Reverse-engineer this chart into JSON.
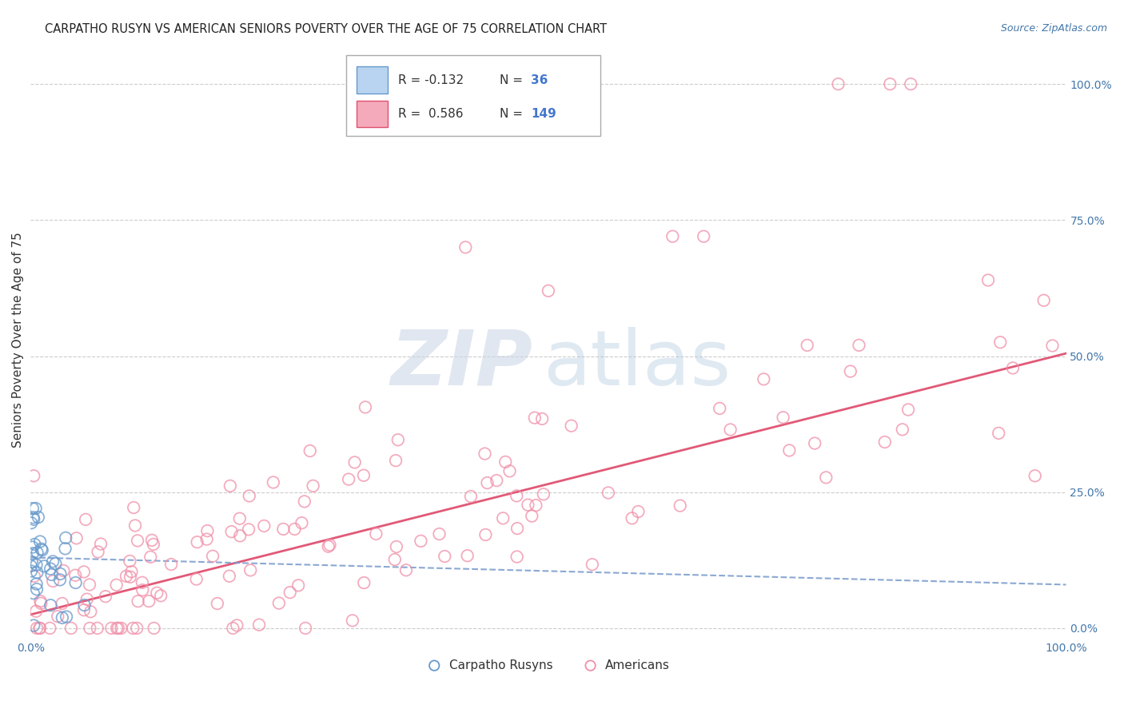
{
  "title": "CARPATHO RUSYN VS AMERICAN SENIORS POVERTY OVER THE AGE OF 75 CORRELATION CHART",
  "source": "Source: ZipAtlas.com",
  "ylabel": "Seniors Poverty Over the Age of 75",
  "xlim": [
    0.0,
    1.0
  ],
  "ylim": [
    -0.02,
    1.08
  ],
  "y_tick_positions": [
    0.0,
    0.25,
    0.5,
    0.75,
    1.0
  ],
  "y_tick_labels": [
    "0.0%",
    "25.0%",
    "50.0%",
    "75.0%",
    "100.0%"
  ],
  "x_tick_positions": [
    0.0,
    1.0
  ],
  "x_tick_labels": [
    "0.0%",
    "100.0%"
  ],
  "carpatho_color": "#6699cc",
  "american_color": "#f090a8",
  "american_line_color": "#e05070",
  "carpatho_line_color": "#7799cc",
  "background_color": "#ffffff",
  "grid_color": "#cccccc",
  "title_color": "#222222",
  "source_color": "#4477aa",
  "axis_label_color": "#333333",
  "tick_color": "#4477aa",
  "legend_blue_face": "#b8d4f0",
  "legend_pink_face": "#f4aabb",
  "carpatho_slope": -0.05,
  "carpatho_intercept": 0.13,
  "american_slope": 0.48,
  "american_intercept": 0.025,
  "watermark_zip_color": "#c8d4e4",
  "watermark_atlas_color": "#b0c8e0"
}
